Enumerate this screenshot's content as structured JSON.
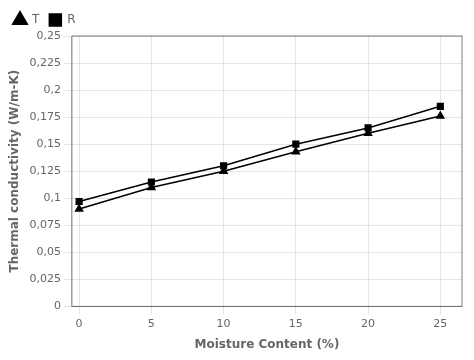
{
  "chart_data": {
    "type": "line",
    "x_label": "Moisture Content (%)",
    "y_label": "Thermal conductivity (W/m-K)",
    "x": [
      0,
      5,
      10,
      15,
      20,
      25
    ],
    "series": [
      {
        "name": "T",
        "color": "#000000",
        "marker": "triangle",
        "values": [
          0.09,
          0.11,
          0.125,
          0.143,
          0.16,
          0.176
        ]
      },
      {
        "name": "R",
        "color": "#000000",
        "marker": "square",
        "values": [
          0.097,
          0.115,
          0.13,
          0.15,
          0.165,
          0.185
        ]
      }
    ],
    "xlim": [
      -0.5,
      26.5
    ],
    "xticks": [
      0,
      5,
      10,
      15,
      20,
      25
    ],
    "ylim": [
      0,
      0.25
    ],
    "yticks": [
      0,
      {
        "value": 0.025,
        "label": "0,025"
      },
      {
        "value": 0.05,
        "label": "0,05"
      },
      {
        "value": 0.075,
        "label": "0,075"
      },
      {
        "value": 0.1,
        "label": "0,1"
      },
      {
        "value": 0.125,
        "label": "0,125"
      },
      {
        "value": 0.15,
        "label": "0,15"
      },
      {
        "value": 0.175,
        "label": "0,175"
      },
      {
        "value": 0.2,
        "label": "0,2"
      },
      {
        "value": 0.225,
        "label": "0,225"
      },
      {
        "value": 0.25,
        "label": "0,25"
      }
    ],
    "grid": true,
    "legend": "upper left"
  }
}
